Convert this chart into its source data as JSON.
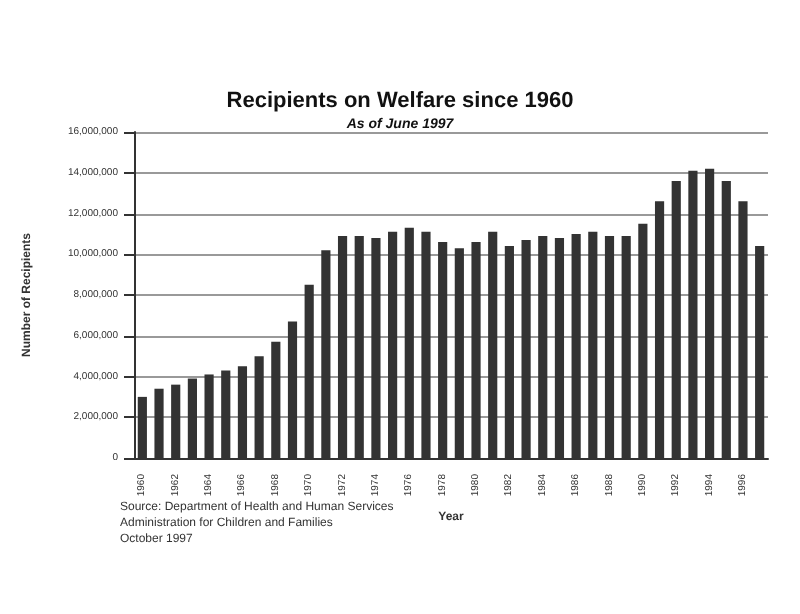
{
  "chart_data": {
    "type": "bar",
    "title": "Recipients on Welfare since 1960",
    "subtitle": "As of June 1997",
    "xlabel": "Year",
    "ylabel": "Number of Recipients",
    "categories": [
      "1960",
      null,
      "1962",
      null,
      "1964",
      null,
      "1966",
      null,
      "1968",
      null,
      "1970",
      null,
      "1972",
      null,
      "1974",
      null,
      "1976",
      null,
      "1978",
      null,
      "1980",
      null,
      "1982",
      null,
      "1984",
      null,
      "1986",
      null,
      "1988",
      null,
      "1990",
      null,
      "1992",
      null,
      "1994",
      null,
      "1996",
      null
    ],
    "values": [
      3000000,
      3400000,
      3600000,
      3900000,
      4100000,
      4300000,
      4500000,
      5000000,
      5700000,
      6700000,
      8500000,
      10200000,
      10900000,
      10900000,
      10800000,
      11100000,
      11300000,
      11100000,
      10600000,
      10300000,
      10600000,
      11100000,
      10400000,
      10700000,
      10900000,
      10800000,
      11000000,
      11100000,
      10900000,
      10900000,
      11500000,
      12600000,
      13600000,
      14100000,
      14200000,
      13600000,
      12600000,
      10400000
    ],
    "color": "#333333",
    "ylim": [
      0,
      16000000
    ],
    "yticks": [
      0,
      {
        "value": 2000000,
        "label": "2,000,000"
      },
      {
        "value": 4000000,
        "label": "4,000,000"
      },
      {
        "value": 6000000,
        "label": "6,000,000"
      },
      {
        "value": 8000000,
        "label": "8,000,000"
      },
      {
        "value": 10000000,
        "label": "10,000,000"
      },
      {
        "value": 12000000,
        "label": "12,000,000"
      },
      {
        "value": 14000000,
        "label": "14,000,000"
      },
      {
        "value": 16000000,
        "label": "16,000,000"
      }
    ],
    "grid": "y",
    "annotations": [
      "Source: Department of Health and Human Services\nAdministration for Children and Families\nOctober 1997"
    ]
  }
}
